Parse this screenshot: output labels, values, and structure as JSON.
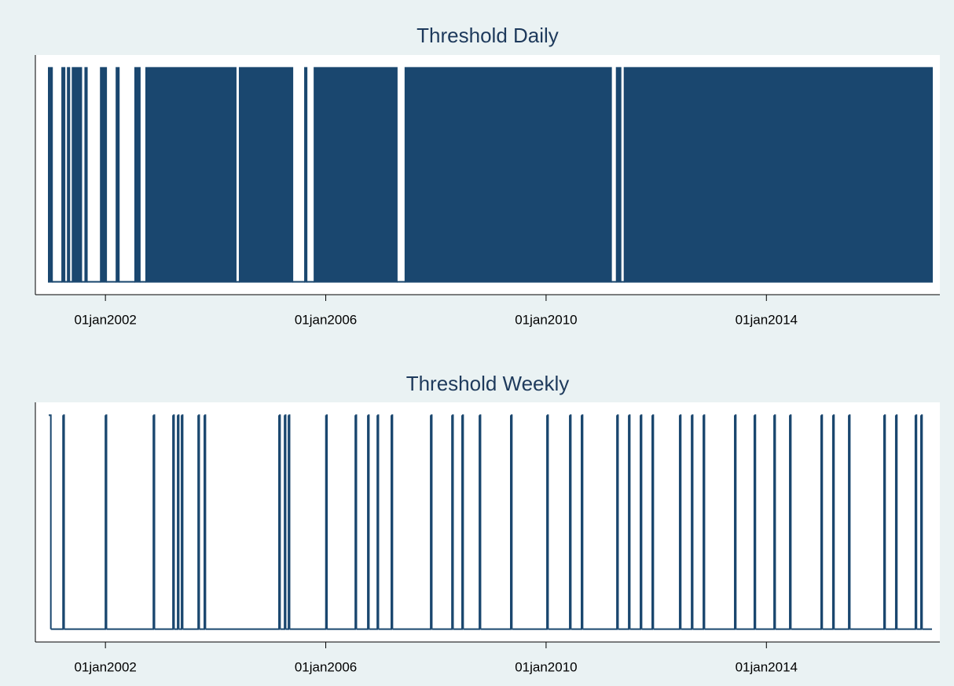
{
  "chart_data": [
    {
      "type": "area",
      "step": "post",
      "title": "Threshold Daily",
      "color": "#1a476f",
      "x": [
        "2000-12-21",
        "2001-01-12",
        "2001-03-20",
        "2001-04-05",
        "2001-04-26",
        "2001-05-07",
        "2001-05-28",
        "2001-07-25",
        "2001-08-20",
        "2001-08-31",
        "2001-12-01",
        "2002-01-06",
        "2002-03-15",
        "2002-03-31",
        "2002-07-17",
        "2002-08-17",
        "2002-09-28",
        "2004-05-14",
        "2004-06-09",
        "2005-05-25",
        "2005-08-16",
        "2005-08-27",
        "2005-10-18",
        "2007-04-17",
        "2007-06-13",
        "2011-03-08",
        "2011-04-14",
        "2011-05-10",
        "2011-06-05",
        "2017-01-03"
      ],
      "values": [
        1,
        0,
        1,
        0,
        1,
        0,
        1,
        0,
        1,
        0,
        1,
        0,
        1,
        0,
        1,
        0,
        1,
        0,
        1,
        0,
        1,
        0,
        1,
        0,
        1,
        0,
        1,
        0,
        1,
        0
      ],
      "xlim": [
        "2000-12-21",
        "2017-01-03"
      ],
      "ylim": [
        -0.06,
        1.06
      ],
      "xticks": [
        {
          "value": "2002-01-01",
          "label": "01jan2002"
        },
        {
          "value": "2006-01-01",
          "label": "01jan2006"
        },
        {
          "value": "2010-01-01",
          "label": "01jan2010"
        },
        {
          "value": "2014-01-01",
          "label": "01jan2014"
        }
      ]
    },
    {
      "type": "line",
      "step": "post",
      "title": "Threshold Weekly",
      "color": "#1a476f",
      "x": [
        "2000-12-21",
        "2001-01-04",
        "2001-03-26",
        "2001-04-02",
        "2002-01-01",
        "2002-01-08",
        "2002-11-15",
        "2002-11-22",
        "2003-03-25",
        "2003-04-01",
        "2003-04-25",
        "2003-05-02",
        "2003-05-21",
        "2003-05-28",
        "2003-09-08",
        "2003-09-15",
        "2003-10-19",
        "2003-10-26",
        "2005-02-25",
        "2005-03-04",
        "2005-04-03",
        "2005-04-10",
        "2005-04-29",
        "2005-05-06",
        "2006-01-02",
        "2006-01-09",
        "2006-07-16",
        "2006-07-23",
        "2006-10-07",
        "2006-10-14",
        "2006-12-09",
        "2006-12-16",
        "2007-03-12",
        "2007-03-19",
        "2007-11-28",
        "2007-12-05",
        "2008-04-17",
        "2008-04-24",
        "2008-06-23",
        "2008-06-30",
        "2008-10-16",
        "2008-10-23",
        "2009-05-12",
        "2009-05-19",
        "2010-01-07",
        "2010-01-14",
        "2010-06-07",
        "2010-06-14",
        "2010-08-24",
        "2010-08-31",
        "2011-04-16",
        "2011-04-23",
        "2011-07-03",
        "2011-07-10",
        "2011-09-19",
        "2011-09-26",
        "2011-12-06",
        "2011-12-13",
        "2012-06-05",
        "2012-06-12",
        "2012-08-23",
        "2012-08-30",
        "2012-11-09",
        "2012-11-16",
        "2013-06-05",
        "2013-06-12",
        "2013-10-13",
        "2013-10-20",
        "2014-02-21",
        "2014-02-28",
        "2014-06-05",
        "2014-06-12",
        "2014-12-30",
        "2015-01-06",
        "2015-03-18",
        "2015-03-25",
        "2015-07-01",
        "2015-07-08",
        "2016-02-20",
        "2016-02-27",
        "2016-05-08",
        "2016-05-15",
        "2016-09-15",
        "2016-09-22",
        "2016-10-22",
        "2016-10-29"
      ],
      "values": [
        1,
        0,
        1,
        0,
        1,
        0,
        1,
        0,
        1,
        0,
        1,
        0,
        1,
        0,
        1,
        0,
        1,
        0,
        1,
        0,
        1,
        0,
        1,
        0,
        1,
        0,
        1,
        0,
        1,
        0,
        1,
        0,
        1,
        0,
        1,
        0,
        1,
        0,
        1,
        0,
        1,
        0,
        1,
        0,
        1,
        0,
        1,
        0,
        1,
        0,
        1,
        0,
        1,
        0,
        1,
        0,
        1,
        0,
        1,
        0,
        1,
        0,
        1,
        0,
        1,
        0,
        1,
        0,
        1,
        0,
        1,
        0,
        1,
        0,
        1,
        0,
        1,
        0,
        1,
        0,
        1,
        0,
        1,
        0,
        1,
        0
      ],
      "xlim": [
        "2000-12-21",
        "2017-01-03"
      ],
      "ylim": [
        -0.06,
        1.06
      ],
      "xticks": [
        {
          "value": "2002-01-01",
          "label": "01jan2002"
        },
        {
          "value": "2006-01-01",
          "label": "01jan2006"
        },
        {
          "value": "2010-01-01",
          "label": "01jan2010"
        },
        {
          "value": "2014-01-01",
          "label": "01jan2014"
        }
      ]
    }
  ]
}
